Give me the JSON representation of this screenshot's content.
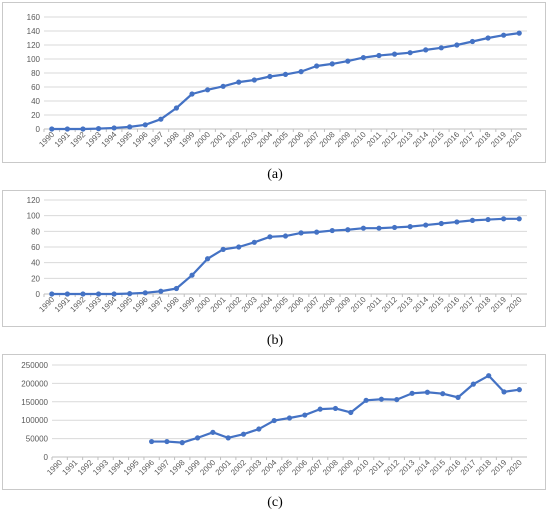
{
  "captions": [
    "(a)",
    "(b)",
    "(c)"
  ],
  "colors": {
    "series": "#4472C4",
    "grid": "#d9d9d9",
    "tick": "#595959"
  },
  "chart_data": [
    {
      "type": "line",
      "title": "",
      "xlabel": "",
      "ylabel": "",
      "grid": "horizontal",
      "ylim": [
        0,
        160
      ],
      "yticks": [
        "0",
        "20",
        "40",
        "60",
        "80",
        "100",
        "120",
        "140",
        "160"
      ],
      "x": [
        "1990",
        "1991",
        "1992",
        "1993",
        "1994",
        "1995",
        "1996",
        "1997",
        "1998",
        "1999",
        "2000",
        "2001",
        "2002",
        "2003",
        "2004",
        "2005",
        "2006",
        "2007",
        "2008",
        "2009",
        "2010",
        "2011",
        "2012",
        "2013",
        "2014",
        "2015",
        "2016",
        "2017",
        "2018",
        "2019",
        "2020"
      ],
      "values": [
        0,
        0,
        0,
        0.5,
        1.5,
        3,
        6,
        14,
        30,
        50,
        56,
        61,
        67,
        70,
        75,
        78,
        82,
        90,
        93,
        97,
        102,
        105,
        107,
        109,
        113,
        116,
        120,
        125,
        130,
        134,
        137
      ]
    },
    {
      "type": "line",
      "title": "",
      "xlabel": "",
      "ylabel": "",
      "grid": "horizontal",
      "ylim": [
        0,
        120
      ],
      "yticks": [
        "0",
        "20",
        "40",
        "60",
        "80",
        "100",
        "120"
      ],
      "x": [
        "1990",
        "1991",
        "1992",
        "1993",
        "1994",
        "1995",
        "1996",
        "1997",
        "1998",
        "1999",
        "2000",
        "2001",
        "2002",
        "2003",
        "2004",
        "2005",
        "2006",
        "2007",
        "2008",
        "2009",
        "2010",
        "2011",
        "2012",
        "2013",
        "2014",
        "2015",
        "2016",
        "2017",
        "2018",
        "2019",
        "2020"
      ],
      "values": [
        0,
        0,
        0,
        0,
        0,
        0.5,
        1.5,
        3.5,
        7,
        24,
        45,
        57,
        60,
        66,
        73,
        74,
        78,
        79,
        81,
        82,
        84,
        84,
        85,
        86,
        88,
        90,
        92,
        94,
        95,
        96,
        96
      ]
    },
    {
      "type": "line",
      "title": "",
      "xlabel": "",
      "ylabel": "",
      "grid": "horizontal",
      "ylim": [
        0,
        250000
      ],
      "yticks": [
        "0",
        "50000",
        "100000",
        "150000",
        "200000",
        "250000"
      ],
      "x": [
        "1990",
        "1991",
        "1992",
        "1993",
        "1994",
        "1995",
        "1996",
        "1997",
        "1998",
        "1999",
        "2000",
        "2001",
        "2002",
        "2003",
        "2004",
        "2005",
        "2006",
        "2007",
        "2008",
        "2009",
        "2010",
        "2011",
        "2012",
        "2013",
        "2014",
        "2015",
        "2016",
        "2017",
        "2018",
        "2019",
        "2020"
      ],
      "values": [
        null,
        null,
        null,
        null,
        null,
        null,
        42000,
        42000,
        39000,
        52000,
        67000,
        52000,
        62000,
        76000,
        99000,
        106000,
        114000,
        130000,
        132000,
        121000,
        154000,
        157000,
        156000,
        173000,
        176000,
        172000,
        162000,
        198000,
        221000,
        177000,
        183000
      ]
    }
  ]
}
